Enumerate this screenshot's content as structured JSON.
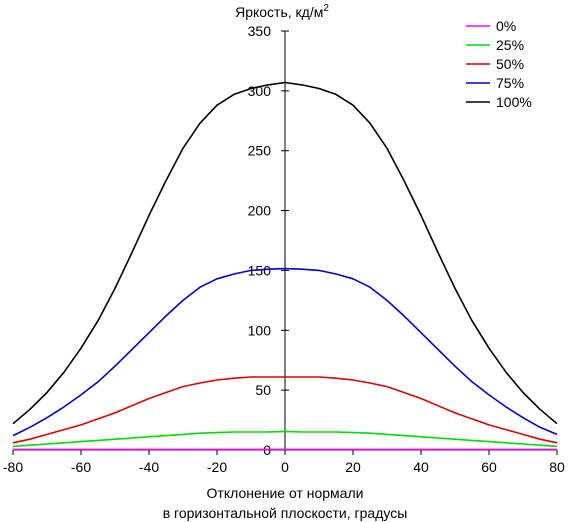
{
  "chart_data": {
    "type": "line",
    "ylabel": "Яркость, кд/м",
    "ylabel_superscript": "2",
    "xlabel_lines": [
      "Отклонение от нормали",
      "в горизонтальной плоскости, градусы"
    ],
    "xlim": [
      -80,
      80
    ],
    "ylim": [
      0,
      350
    ],
    "x_ticks": [
      -80,
      -60,
      -40,
      -20,
      0,
      20,
      40,
      60,
      80
    ],
    "y_ticks": [
      350,
      300,
      250,
      200,
      150,
      100,
      50,
      0
    ],
    "grid": false,
    "legend_position": "top-right",
    "x": [
      -80,
      -75,
      -70,
      -65,
      -60,
      -55,
      -50,
      -45,
      -40,
      -35,
      -30,
      -25,
      -20,
      -15,
      -10,
      -5,
      0,
      5,
      10,
      15,
      20,
      25,
      30,
      35,
      40,
      45,
      50,
      55,
      60,
      65,
      70,
      75,
      80
    ],
    "series": [
      {
        "name": "0%",
        "color": "#ff00ff",
        "values": [
          0.5,
          0.5,
          0.5,
          0.5,
          0.5,
          0.5,
          0.5,
          0.5,
          0.5,
          0.5,
          0.5,
          0.5,
          0.5,
          0.5,
          0.5,
          0.5,
          0.5,
          0.5,
          0.5,
          0.5,
          0.5,
          0.5,
          0.5,
          0.5,
          0.5,
          0.5,
          0.5,
          0.5,
          0.5,
          0.5,
          0.5,
          0.5,
          0.5
        ]
      },
      {
        "name": "25%",
        "color": "#00dd00",
        "values": [
          3,
          4,
          5,
          6,
          7,
          8,
          9,
          10,
          11,
          12,
          13,
          14,
          14.5,
          15,
          15,
          15,
          15.5,
          15,
          15,
          15,
          14.5,
          14,
          13,
          12,
          11,
          10,
          9,
          8,
          7,
          6,
          5,
          4,
          3
        ]
      },
      {
        "name": "50%",
        "color": "#dd0000",
        "values": [
          6,
          9,
          13,
          17,
          21,
          26,
          31,
          37,
          43,
          48,
          53,
          56,
          58.5,
          60,
          61,
          61,
          61,
          61,
          61,
          60,
          58.5,
          56,
          53,
          48,
          43,
          37,
          31,
          26,
          21,
          17,
          13,
          9,
          6
        ]
      },
      {
        "name": "75%",
        "color": "#0000cc",
        "values": [
          12,
          19,
          27,
          36,
          46,
          57,
          70,
          84,
          98,
          112,
          125,
          136,
          143,
          147,
          150,
          151,
          151.5,
          151,
          150,
          147,
          143,
          136,
          125,
          112,
          98,
          84,
          70,
          57,
          46,
          36,
          27,
          19,
          13
        ]
      },
      {
        "name": "100%",
        "color": "#000000",
        "values": [
          22,
          34,
          48,
          65,
          85,
          108,
          135,
          165,
          196,
          225,
          252,
          273,
          288,
          297,
          302,
          305,
          307,
          305,
          302,
          297,
          288,
          273,
          252,
          225,
          196,
          165,
          135,
          108,
          85,
          65,
          48,
          34,
          22
        ]
      }
    ]
  }
}
